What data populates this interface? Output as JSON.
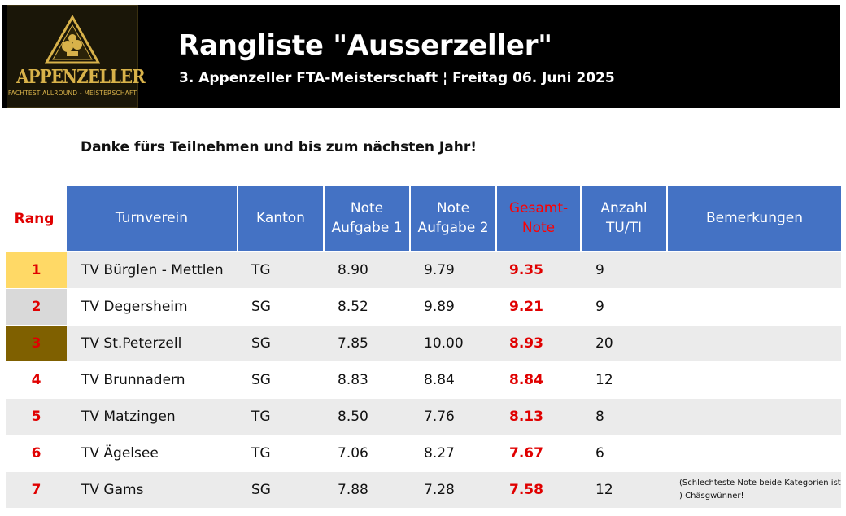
{
  "header": {
    "logo_title": "APPENZELLER",
    "logo_subtitle": "FACHTEST ALLROUND - MEISTERSCHAFT",
    "title": "Rangliste \"Ausserzeller\"",
    "subtitle": "3. Appenzeller FTA-Meisterschaft ¦ Freitag 06. Juni 2025"
  },
  "message": "Danke fürs Teilnehmen und bis zum nächsten Jahr!",
  "columns": {
    "rang": "Rang",
    "turnverein": "Turnverein",
    "kanton": "Kanton",
    "note1_line1": "Note",
    "note1_line2": "Aufgabe 1",
    "note2_line1": "Note",
    "note2_line2": "Aufgabe 2",
    "gesamt_line1": "Gesamt-",
    "gesamt_line2": "Note",
    "anzahl_line1": "Anzahl",
    "anzahl_line2": "TU/TI",
    "bemerkungen": "Bemerkungen"
  },
  "colors": {
    "header_blue": "#4472c4",
    "gold": "#ffd966",
    "silver": "#d9d9d9",
    "bronze": "#7f6000",
    "accent_red": "#ff0000"
  },
  "rows": [
    {
      "rang": "1",
      "verein": "TV Bürglen - Mettlen",
      "kanton": "TG",
      "note1": "8.90",
      "note2": "9.79",
      "gesamt": "9.35",
      "anzahl": "9",
      "bemerkung": ""
    },
    {
      "rang": "2",
      "verein": "TV Degersheim",
      "kanton": "SG",
      "note1": "8.52",
      "note2": "9.89",
      "gesamt": "9.21",
      "anzahl": "9",
      "bemerkung": ""
    },
    {
      "rang": "3",
      "verein": "TV St.Peterzell",
      "kanton": "SG",
      "note1": "7.85",
      "note2": "10.00",
      "gesamt": "8.93",
      "anzahl": "20",
      "bemerkung": ""
    },
    {
      "rang": "4",
      "verein": "TV Brunnadern",
      "kanton": "SG",
      "note1": "8.83",
      "note2": "8.84",
      "gesamt": "8.84",
      "anzahl": "12",
      "bemerkung": ""
    },
    {
      "rang": "5",
      "verein": "TV Matzingen",
      "kanton": "TG",
      "note1": "8.50",
      "note2": "7.76",
      "gesamt": "8.13",
      "anzahl": "8",
      "bemerkung": ""
    },
    {
      "rang": "6",
      "verein": "TV Ägelsee",
      "kanton": "TG",
      "note1": "7.06",
      "note2": "8.27",
      "gesamt": "7.67",
      "anzahl": "6",
      "bemerkung": ""
    },
    {
      "rang": "7",
      "verein": "TV Gams",
      "kanton": "SG",
      "note1": "7.88",
      "note2": "7.28",
      "gesamt": "7.58",
      "anzahl": "12",
      "bemerkung": "(Schlechteste Note beide Kategorien ist ) Chäsgwünner!"
    }
  ]
}
